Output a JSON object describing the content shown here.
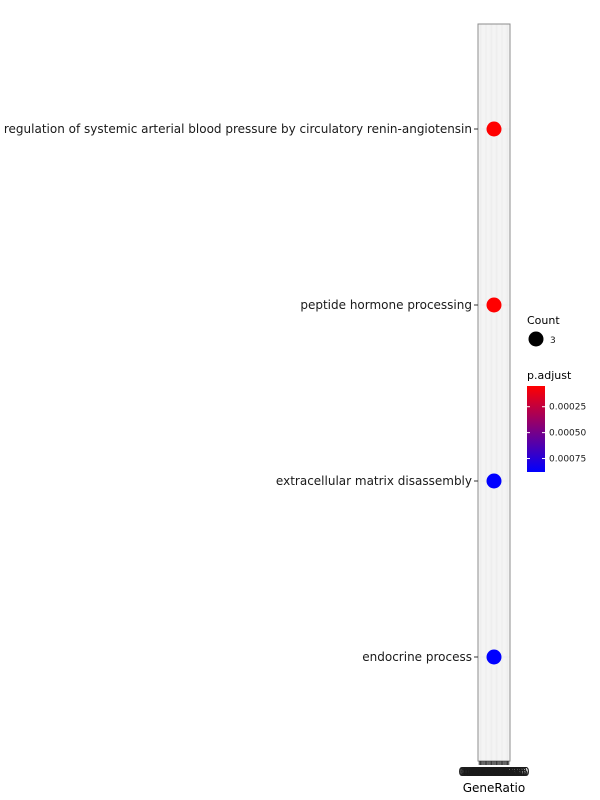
{
  "chart_data": {
    "type": "scatter",
    "xlabel": "GeneRatio",
    "ylabel": "",
    "categories": [
      "regulation of systemic arterial blood pressure by circulatory renin-angiotensin",
      "peptide hormone processing",
      "extracellular matrix disassembly",
      "endocrine process"
    ],
    "x_tick_labels": [
      "0.0000",
      "0.0025",
      "0.0050",
      "0.0075",
      "0.0100",
      "0.0125",
      "0.0150",
      "0.0175",
      "0.0200",
      "0.0225",
      "0.0250",
      "0.0275",
      "0.0300",
      "0.0325",
      "0.0350",
      "0.0375",
      "0.0400",
      "0.0425",
      "0.0450",
      "0.0475",
      "0.0500",
      "0.0525",
      "0.0550",
      "0.0575",
      "0.0600"
    ],
    "x_tick_values": [
      0.0,
      0.0025,
      0.005,
      0.0075,
      0.01,
      0.0125,
      0.015,
      0.0175,
      0.02,
      0.0225,
      0.025,
      0.0275,
      0.03,
      0.0325,
      0.035,
      0.0375,
      0.04,
      0.0425,
      0.045,
      0.0475,
      0.05,
      0.0525,
      0.055,
      0.0575,
      0.06
    ],
    "xlim": [
      -0.0025,
      0.0625
    ],
    "points": [
      {
        "term": "regulation of systemic arterial blood pressure by circulatory renin-angiotensin",
        "gene_ratio": 0.03,
        "count": 3,
        "p_adjust": 5e-05
      },
      {
        "term": "peptide hormone processing",
        "gene_ratio": 0.03,
        "count": 3,
        "p_adjust": 5e-05
      },
      {
        "term": "extracellular matrix disassembly",
        "gene_ratio": 0.03,
        "count": 3,
        "p_adjust": 0.00088
      },
      {
        "term": "endocrine process",
        "gene_ratio": 0.03,
        "count": 3,
        "p_adjust": 0.00088
      }
    ],
    "legend": {
      "size_title": "Count",
      "size_entries": [
        {
          "label": "3",
          "value": 3
        }
      ],
      "color_title": "p.adjust",
      "color_ticks": [
        {
          "label": "0.00025",
          "value": 0.00025
        },
        {
          "label": "0.00050",
          "value": 0.0005
        },
        {
          "label": "0.00075",
          "value": 0.00075
        }
      ],
      "color_range": [
        5e-05,
        0.00088
      ],
      "color_low": "#ff0000",
      "color_high": "#0000ff"
    },
    "grid": true
  }
}
